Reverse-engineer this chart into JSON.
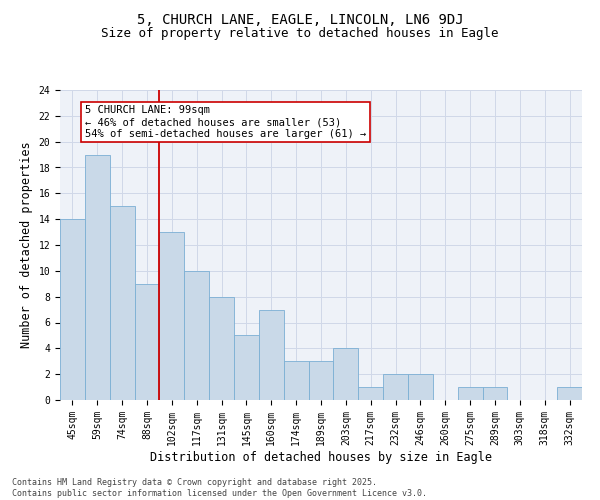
{
  "title_line1": "5, CHURCH LANE, EAGLE, LINCOLN, LN6 9DJ",
  "title_line2": "Size of property relative to detached houses in Eagle",
  "xlabel": "Distribution of detached houses by size in Eagle",
  "ylabel": "Number of detached properties",
  "categories": [
    "45sqm",
    "59sqm",
    "74sqm",
    "88sqm",
    "102sqm",
    "117sqm",
    "131sqm",
    "145sqm",
    "160sqm",
    "174sqm",
    "189sqm",
    "203sqm",
    "217sqm",
    "232sqm",
    "246sqm",
    "260sqm",
    "275sqm",
    "289sqm",
    "303sqm",
    "318sqm",
    "332sqm"
  ],
  "values": [
    14,
    19,
    15,
    9,
    13,
    10,
    8,
    5,
    7,
    3,
    3,
    4,
    1,
    2,
    2,
    0,
    1,
    1,
    0,
    0,
    1
  ],
  "bar_color": "#c9d9e8",
  "bar_edge_color": "#7bafd4",
  "grid_color": "#d0d8e8",
  "background_color": "#eef2f8",
  "vline_index": 4,
  "vline_color": "#cc0000",
  "annotation_box_text": "5 CHURCH LANE: 99sqm\n← 46% of detached houses are smaller (53)\n54% of semi-detached houses are larger (61) →",
  "ylim": [
    0,
    24
  ],
  "yticks": [
    0,
    2,
    4,
    6,
    8,
    10,
    12,
    14,
    16,
    18,
    20,
    22,
    24
  ],
  "footnote": "Contains HM Land Registry data © Crown copyright and database right 2025.\nContains public sector information licensed under the Open Government Licence v3.0.",
  "title_fontsize": 10,
  "subtitle_fontsize": 9,
  "axis_label_fontsize": 8.5,
  "tick_fontsize": 7,
  "annotation_fontsize": 7.5,
  "footnote_fontsize": 6
}
